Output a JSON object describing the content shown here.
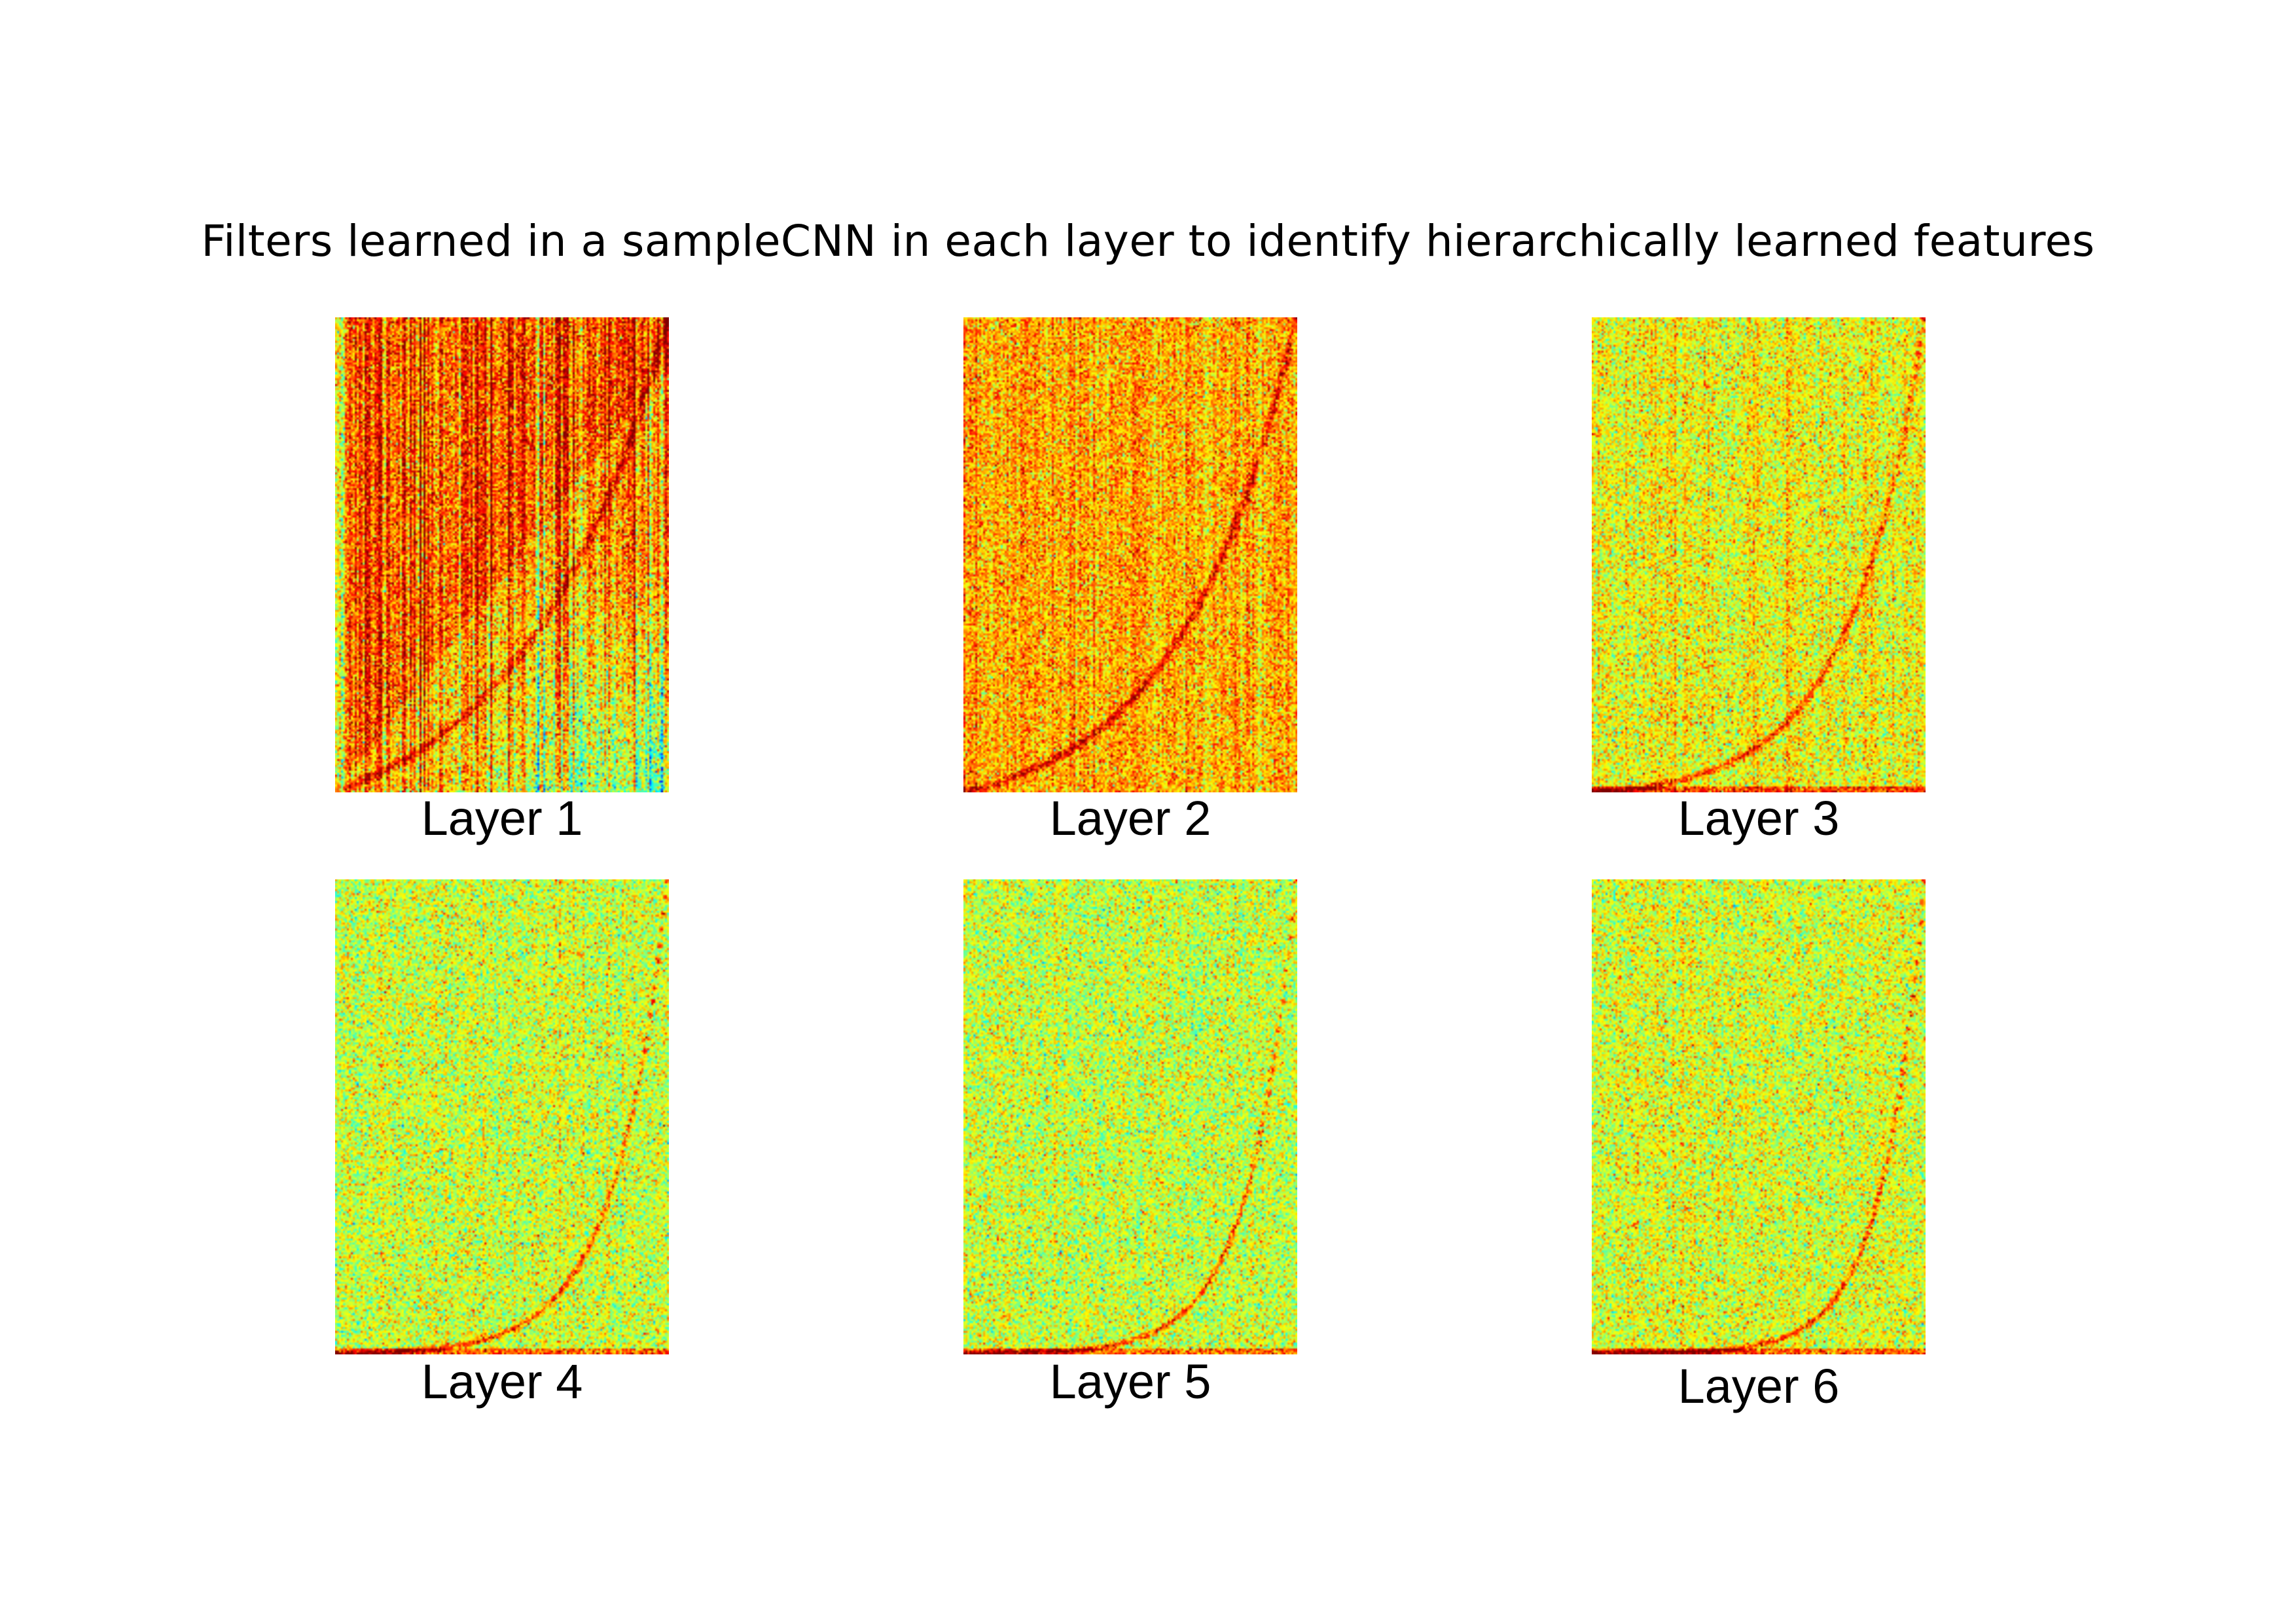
{
  "title": "Filters learned in a sampleCNN in each layer to identify hierarchically  learned features",
  "panels": [
    {
      "caption": "Layer 1"
    },
    {
      "caption": "Layer 2"
    },
    {
      "caption": "Layer 3"
    },
    {
      "caption": "Layer 4"
    },
    {
      "caption": "Layer 5"
    },
    {
      "caption": "Layer 6"
    }
  ],
  "colormap": "jet"
}
